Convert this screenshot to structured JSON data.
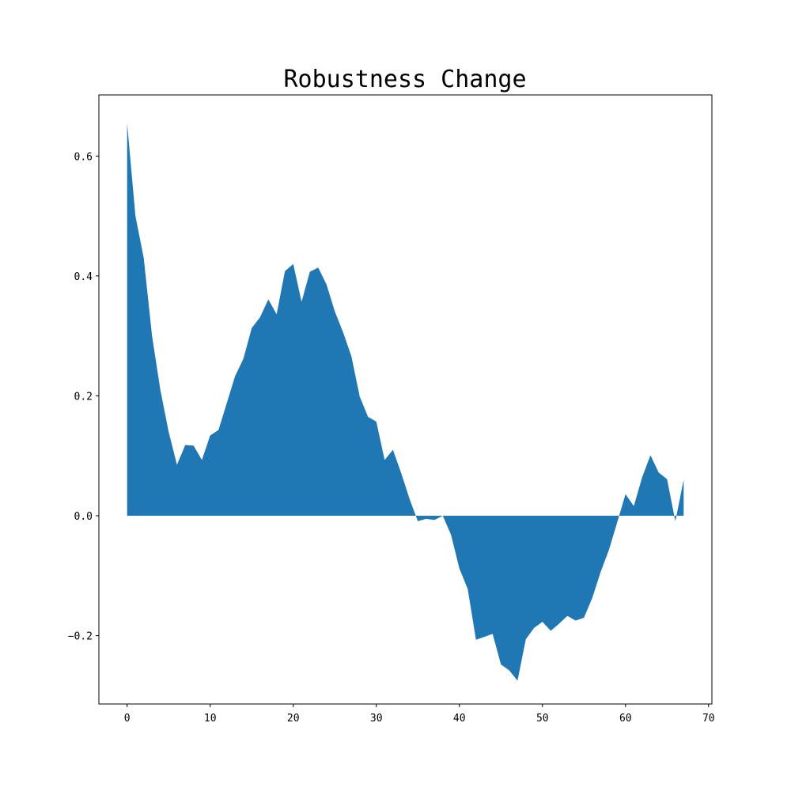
{
  "chart_data": {
    "type": "area",
    "title": "Robustness Change",
    "xlabel": "",
    "ylabel": "",
    "xlim": [
      -3.4,
      70.4
    ],
    "ylim": [
      -0.314,
      0.702
    ],
    "xticks": [
      0,
      10,
      20,
      30,
      40,
      50,
      60,
      70
    ],
    "xtick_labels": [
      "0",
      "10",
      "20",
      "30",
      "40",
      "50",
      "60",
      "70"
    ],
    "yticks": [
      -0.2,
      0.0,
      0.2,
      0.4,
      0.6
    ],
    "ytick_labels": [
      "−0.2",
      "0.0",
      "0.2",
      "0.4",
      "0.6"
    ],
    "grid": false,
    "fill_color": "#1f77b4",
    "baseline": 0,
    "series": [
      {
        "x": [
          0,
          1,
          2,
          3,
          4,
          5,
          6,
          7,
          8,
          9,
          10,
          11,
          12,
          13,
          14,
          15,
          16,
          17,
          18,
          19,
          20,
          21,
          22,
          23,
          24,
          25,
          26,
          27,
          28,
          29,
          30,
          31,
          32,
          33,
          34,
          35,
          36,
          37,
          38,
          39,
          40,
          41,
          42,
          43,
          44,
          45,
          46,
          47,
          48,
          49,
          50,
          51,
          52,
          53,
          54,
          55,
          56,
          57,
          58,
          59,
          60,
          61,
          62,
          63,
          64,
          65,
          66,
          67
        ],
        "values": [
          0.655,
          0.5,
          0.43,
          0.3,
          0.21,
          0.14,
          0.085,
          0.118,
          0.117,
          0.093,
          0.134,
          0.143,
          0.188,
          0.233,
          0.262,
          0.313,
          0.331,
          0.361,
          0.336,
          0.408,
          0.42,
          0.357,
          0.407,
          0.414,
          0.386,
          0.341,
          0.306,
          0.266,
          0.199,
          0.165,
          0.157,
          0.093,
          0.11,
          0.071,
          0.028,
          -0.009,
          -0.005,
          -0.007,
          0.0,
          -0.032,
          -0.088,
          -0.122,
          -0.207,
          -0.202,
          -0.197,
          -0.248,
          -0.258,
          -0.275,
          -0.206,
          -0.187,
          -0.177,
          -0.192,
          -0.18,
          -0.167,
          -0.175,
          -0.17,
          -0.137,
          -0.094,
          -0.057,
          -0.011,
          0.036,
          0.016,
          0.064,
          0.101,
          0.072,
          0.061,
          -0.009,
          0.06
        ]
      }
    ]
  }
}
